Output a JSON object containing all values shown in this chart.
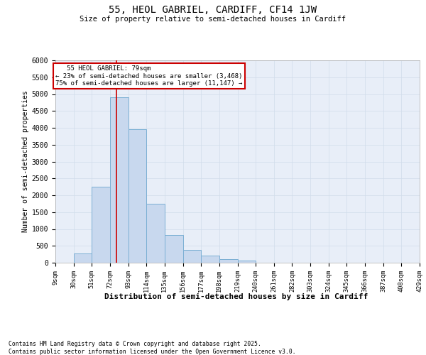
{
  "title": "55, HEOL GABRIEL, CARDIFF, CF14 1JW",
  "subtitle": "Size of property relative to semi-detached houses in Cardiff",
  "xlabel": "Distribution of semi-detached houses by size in Cardiff",
  "ylabel": "Number of semi-detached properties",
  "property_size": 79,
  "property_label": "55 HEOL GABRIEL: 79sqm",
  "pct_smaller": "23% of semi-detached houses are smaller (3,468)",
  "pct_larger": "75% of semi-detached houses are larger (11,147)",
  "bins": [
    9,
    30,
    51,
    72,
    93,
    114,
    135,
    156,
    177,
    198,
    219,
    240,
    261,
    282,
    303,
    324,
    345,
    366,
    387,
    408,
    429
  ],
  "counts": [
    0,
    270,
    2250,
    4900,
    3950,
    1750,
    830,
    380,
    215,
    100,
    70,
    0,
    0,
    0,
    0,
    0,
    0,
    0,
    0,
    0
  ],
  "bar_color": "#c8d8ee",
  "bar_edge_color": "#7bafd4",
  "line_color": "#cc0000",
  "grid_color": "#d0dcea",
  "background_color": "#e8eef8",
  "ylim_max": 6000,
  "yticks": [
    0,
    500,
    1000,
    1500,
    2000,
    2500,
    3000,
    3500,
    4000,
    4500,
    5000,
    5500,
    6000
  ],
  "footer_line1": "Contains HM Land Registry data © Crown copyright and database right 2025.",
  "footer_line2": "Contains public sector information licensed under the Open Government Licence v3.0."
}
